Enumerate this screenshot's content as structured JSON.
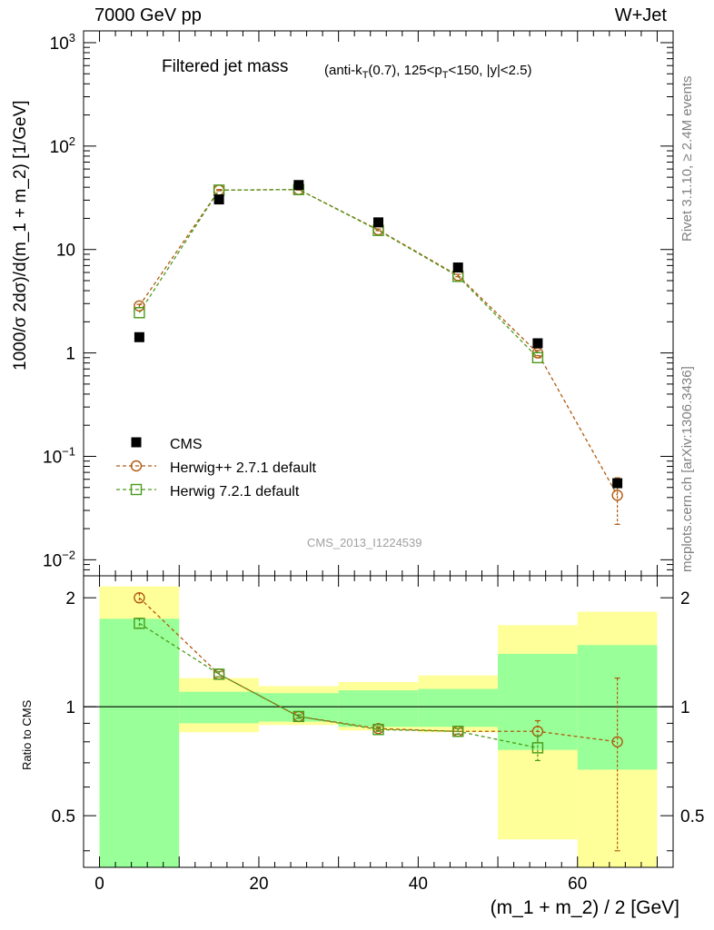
{
  "header": {
    "left": "7000 GeV pp",
    "right": "W+Jet"
  },
  "side_labels": {
    "rivet": "Rivet 3.1.10, ≥ 2.4M events",
    "mcplots": "mcplots.cern.ch [arXiv:1306.3436]"
  },
  "analysis_tag": "CMS_2013_I1224539",
  "colors": {
    "cms": "#000000",
    "herwigpp": "#b05a10",
    "herwig7": "#4a9a1a",
    "band_yellow": "#ffff99",
    "band_green": "#99ff99"
  },
  "chart_data": [
    {
      "type": "scatter",
      "panel": "main",
      "title": "Filtered jet mass",
      "subtitle": "(anti-kT(0.7), 125<pT<150, |y|<2.5)",
      "xlabel": "(m_1 + m_2) / 2 [GeV]",
      "ylabel": "1000/σ 2dσ)/d(m_1 + m_2) [1/GeV]",
      "xlim": [
        -2,
        72
      ],
      "ylim": [
        0.007,
        1300
      ],
      "yscale": "log",
      "y_tick_labels": [
        "10^-2",
        "10^-1",
        "1",
        "10",
        "10^2",
        "10^3"
      ],
      "legend_placement": "bottom-left",
      "x": [
        5,
        15,
        25,
        35,
        45,
        55,
        65
      ],
      "series": [
        {
          "name": "CMS",
          "marker": "filled-square",
          "values": [
            1.42,
            30.5,
            42.0,
            18.3,
            6.7,
            1.24,
            0.055
          ]
        },
        {
          "name": "Herwig++ 2.7.1 default",
          "marker": "open-circle",
          "line": "dashed",
          "values": [
            2.85,
            37.5,
            38.0,
            15.5,
            5.6,
            1.0,
            0.042
          ],
          "yerr": [
            0.1,
            0.5,
            0.5,
            0.3,
            0.15,
            0.06,
            0.02
          ]
        },
        {
          "name": "Herwig 7.2.1 default",
          "marker": "open-square",
          "line": "dashed",
          "values": [
            2.45,
            37.5,
            38.0,
            15.3,
            5.5,
            0.9,
            null
          ]
        }
      ]
    },
    {
      "type": "scatter",
      "panel": "ratio",
      "ylabel": "Ratio to CMS",
      "ylim": [
        0.36,
        2.3
      ],
      "yscale": "log",
      "y_ticks": [
        0.5,
        1,
        2
      ],
      "y_tick_labels": [
        "0.5",
        "1",
        "2"
      ],
      "x_ticks": [
        0,
        20,
        40,
        60
      ],
      "x_tick_labels": [
        "0",
        "20",
        "40",
        "60"
      ],
      "bands": [
        {
          "xmin": 0,
          "xmax": 10,
          "yellow": [
            0.36,
            2.15
          ],
          "green": [
            0.36,
            1.75
          ]
        },
        {
          "xmin": 10,
          "xmax": 20,
          "yellow": [
            0.85,
            1.2
          ],
          "green": [
            0.9,
            1.1
          ]
        },
        {
          "xmin": 20,
          "xmax": 30,
          "yellow": [
            0.89,
            1.14
          ],
          "green": [
            0.91,
            1.09
          ]
        },
        {
          "xmin": 30,
          "xmax": 40,
          "yellow": [
            0.86,
            1.17
          ],
          "green": [
            0.88,
            1.11
          ]
        },
        {
          "xmin": 40,
          "xmax": 50,
          "yellow": [
            0.85,
            1.22
          ],
          "green": [
            0.88,
            1.12
          ]
        },
        {
          "xmin": 50,
          "xmax": 60,
          "yellow": [
            0.43,
            1.68
          ],
          "green": [
            0.76,
            1.4
          ]
        },
        {
          "xmin": 60,
          "xmax": 70,
          "yellow": [
            0.36,
            1.83
          ],
          "green": [
            0.67,
            1.48
          ]
        }
      ],
      "x": [
        5,
        15,
        25,
        35,
        45,
        55,
        65
      ],
      "series": [
        {
          "name": "Herwig++ 2.7.1 default",
          "values": [
            2.0,
            1.23,
            0.94,
            0.87,
            0.855,
            0.855,
            0.8
          ],
          "yerr": [
            0.06,
            0.02,
            0.01,
            0.01,
            0.015,
            0.06,
            0.4
          ]
        },
        {
          "name": "Herwig 7.2.1 default",
          "values": [
            1.7,
            1.23,
            0.94,
            0.865,
            0.855,
            0.77,
            null
          ],
          "yerr": [
            0.05,
            0.02,
            0.01,
            0.01,
            0.015,
            0.06,
            null
          ]
        }
      ]
    }
  ]
}
